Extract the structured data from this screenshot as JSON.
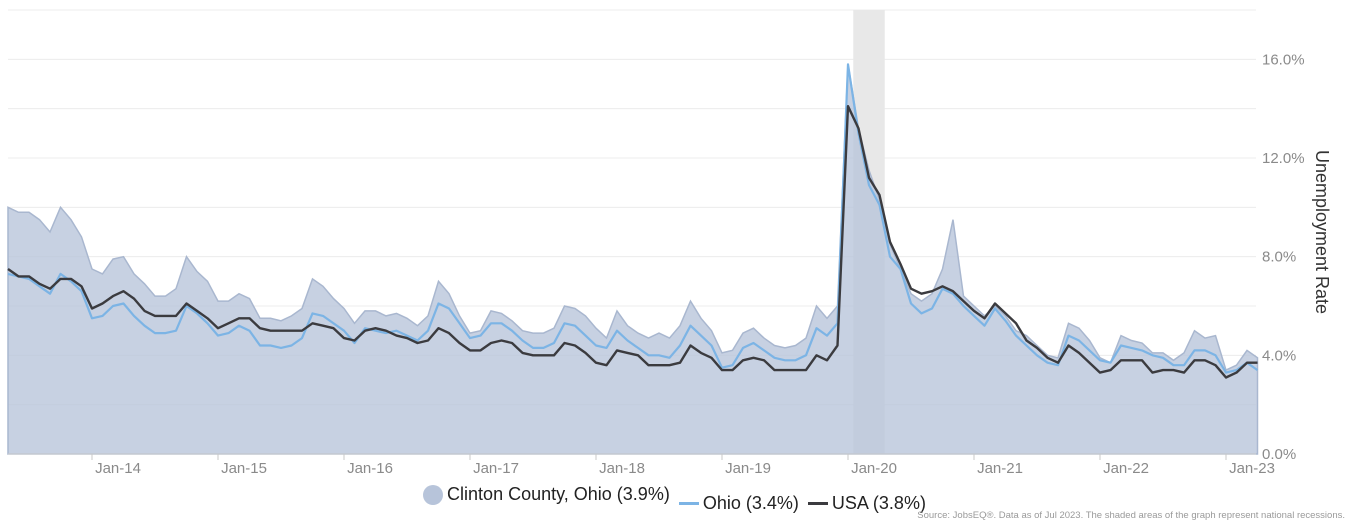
{
  "chart_data": {
    "type": "line",
    "x_start": "2013-05",
    "x_tick_labels": [
      "Jan-14",
      "Jan-15",
      "Jan-16",
      "Jan-17",
      "Jan-18",
      "Jan-19",
      "Jan-20",
      "Jan-21",
      "Jan-22",
      "Jan-23"
    ],
    "y_tick_labels": [
      "0.0%",
      "4.0%",
      "8.0%",
      "12.0%",
      "16.0%"
    ],
    "ylim": [
      0,
      18
    ],
    "ylabel": "Unemployment Rate",
    "recession": {
      "start": "2020-02",
      "end": "2020-04"
    },
    "series": [
      {
        "name": "Clinton County, Ohio (3.9%)",
        "kind": "area",
        "color": "#b7c4da",
        "values": [
          10.0,
          9.8,
          9.8,
          9.5,
          9.0,
          10.0,
          9.5,
          8.8,
          7.5,
          7.3,
          7.9,
          8.0,
          7.3,
          6.9,
          6.4,
          6.4,
          6.7,
          8.0,
          7.4,
          7.0,
          6.2,
          6.2,
          6.5,
          6.3,
          5.5,
          5.5,
          5.4,
          5.6,
          5.9,
          7.1,
          6.8,
          6.3,
          5.9,
          5.3,
          5.8,
          5.8,
          5.6,
          5.7,
          5.5,
          5.2,
          5.6,
          7.0,
          6.5,
          5.6,
          4.9,
          5.0,
          5.8,
          5.7,
          5.4,
          5.0,
          4.9,
          4.9,
          5.1,
          6.0,
          5.9,
          5.6,
          5.1,
          4.7,
          5.8,
          5.2,
          4.9,
          4.7,
          4.9,
          4.7,
          5.2,
          6.2,
          5.5,
          5.0,
          4.1,
          4.2,
          4.9,
          5.1,
          4.7,
          4.4,
          4.3,
          4.4,
          4.7,
          6.0,
          5.5,
          6.0,
          15.8,
          13.2,
          11.5,
          10.3,
          8.5,
          7.5,
          6.5,
          6.2,
          6.5,
          7.5,
          9.5,
          6.4,
          6.0,
          5.6,
          6.0,
          5.6,
          5.0,
          4.8,
          4.4,
          4.0,
          3.9,
          5.3,
          5.1,
          4.6,
          3.9,
          3.7,
          4.8,
          4.6,
          4.5,
          4.1,
          4.1,
          3.8,
          4.1,
          5.0,
          4.7,
          4.8,
          3.4,
          3.6,
          4.2,
          3.9
        ],
        "legend": true
      },
      {
        "name": "Ohio (3.4%)",
        "kind": "line",
        "color": "#7cb4e5",
        "values": [
          7.3,
          7.2,
          7.1,
          6.8,
          6.5,
          7.3,
          7.0,
          6.6,
          5.5,
          5.6,
          6.0,
          6.1,
          5.6,
          5.2,
          4.9,
          4.9,
          5.0,
          6.0,
          5.7,
          5.3,
          4.8,
          4.9,
          5.2,
          5.0,
          4.4,
          4.4,
          4.3,
          4.4,
          4.7,
          5.7,
          5.6,
          5.3,
          5.0,
          4.5,
          5.1,
          5.0,
          4.9,
          5.0,
          4.8,
          4.6,
          5.0,
          6.1,
          5.9,
          5.3,
          4.7,
          4.8,
          5.3,
          5.3,
          5.0,
          4.6,
          4.3,
          4.3,
          4.5,
          5.3,
          5.2,
          4.8,
          4.4,
          4.3,
          5.0,
          4.6,
          4.3,
          4.0,
          4.0,
          3.9,
          4.4,
          5.2,
          4.8,
          4.4,
          3.5,
          3.6,
          4.3,
          4.5,
          4.2,
          3.9,
          3.8,
          3.8,
          4.0,
          5.1,
          4.8,
          5.3,
          15.8,
          13.0,
          10.9,
          10.1,
          8.0,
          7.5,
          6.1,
          5.7,
          5.9,
          6.7,
          6.5,
          6.0,
          5.6,
          5.2,
          5.9,
          5.4,
          4.8,
          4.4,
          4.0,
          3.7,
          3.6,
          4.8,
          4.6,
          4.2,
          3.8,
          3.7,
          4.4,
          4.3,
          4.2,
          4.0,
          3.9,
          3.6,
          3.6,
          4.2,
          4.2,
          4.0,
          3.3,
          3.4,
          3.7,
          3.4
        ],
        "legend": true
      },
      {
        "name": "USA (3.8%)",
        "kind": "line",
        "color": "#3b3b3f",
        "values": [
          7.5,
          7.2,
          7.2,
          6.9,
          6.7,
          7.1,
          7.1,
          6.8,
          5.9,
          6.1,
          6.4,
          6.6,
          6.3,
          5.8,
          5.6,
          5.6,
          5.6,
          6.1,
          5.8,
          5.5,
          5.1,
          5.3,
          5.5,
          5.5,
          5.1,
          5.0,
          5.0,
          5.0,
          5.0,
          5.3,
          5.2,
          5.1,
          4.7,
          4.6,
          5.0,
          5.1,
          5.0,
          4.8,
          4.7,
          4.5,
          4.6,
          5.1,
          4.9,
          4.5,
          4.2,
          4.2,
          4.5,
          4.6,
          4.5,
          4.1,
          4.0,
          4.0,
          4.0,
          4.5,
          4.4,
          4.1,
          3.7,
          3.6,
          4.2,
          4.1,
          4.0,
          3.6,
          3.6,
          3.6,
          3.7,
          4.4,
          4.1,
          3.9,
          3.4,
          3.4,
          3.8,
          3.9,
          3.8,
          3.4,
          3.4,
          3.4,
          3.4,
          4.0,
          3.8,
          4.4,
          14.1,
          13.2,
          11.2,
          10.5,
          8.6,
          7.7,
          6.7,
          6.5,
          6.6,
          6.8,
          6.6,
          6.2,
          5.8,
          5.5,
          6.1,
          5.7,
          5.3,
          4.6,
          4.3,
          3.9,
          3.7,
          4.4,
          4.1,
          3.7,
          3.3,
          3.4,
          3.8,
          3.8,
          3.8,
          3.3,
          3.4,
          3.4,
          3.3,
          3.8,
          3.8,
          3.6,
          3.1,
          3.3,
          3.7,
          3.7
        ],
        "legend": true
      }
    ]
  },
  "source_note": "Source: JobsEQ®. Data as of Jul 2023. The shaded areas of the graph represent national recessions."
}
